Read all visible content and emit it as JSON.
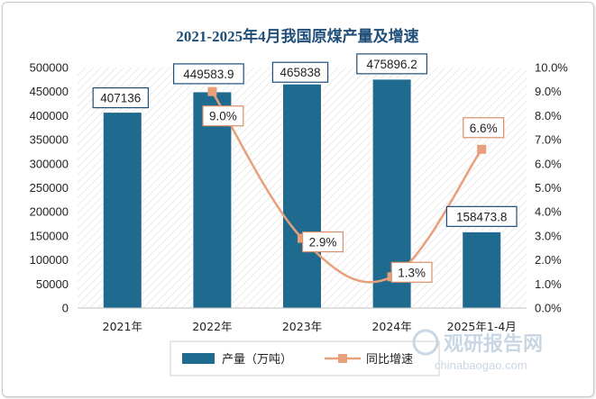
{
  "chart_data": {
    "type": "bar+line",
    "title": "2021-2025年4月我国原煤产量及增速",
    "categories": [
      "2021年",
      "2022年",
      "2023年",
      "2024年",
      "2025年1-4月"
    ],
    "series": [
      {
        "name": "产量（万吨）",
        "type": "bar",
        "axis": "left",
        "color": "#1f6a8f",
        "values": [
          407136,
          449583.9,
          465838,
          475896.2,
          158473.8
        ],
        "labels": [
          "407136",
          "449583.9",
          "465838",
          "475896.2",
          "158473.8"
        ]
      },
      {
        "name": "同比增速",
        "type": "line",
        "axis": "right",
        "color": "#e8a07a",
        "values": [
          null,
          9.0,
          2.9,
          1.3,
          6.6
        ],
        "labels": [
          "",
          "9.0%",
          "2.9%",
          "1.3%",
          "6.6%"
        ]
      }
    ],
    "y_left": {
      "min": 0,
      "max": 500000,
      "step": 50000,
      "ticks": [
        "0",
        "50000",
        "100000",
        "150000",
        "200000",
        "250000",
        "300000",
        "350000",
        "400000",
        "450000",
        "500000"
      ]
    },
    "y_right": {
      "min": 0,
      "max": 10,
      "step": 1,
      "ticks": [
        "0.0%",
        "1.0%",
        "2.0%",
        "3.0%",
        "4.0%",
        "5.0%",
        "6.0%",
        "7.0%",
        "8.0%",
        "9.0%",
        "10.0%"
      ]
    },
    "legend_position": "bottom-center",
    "grid": false
  },
  "watermark": {
    "cn": "观研报告网",
    "en": "chinabaogao.com"
  }
}
